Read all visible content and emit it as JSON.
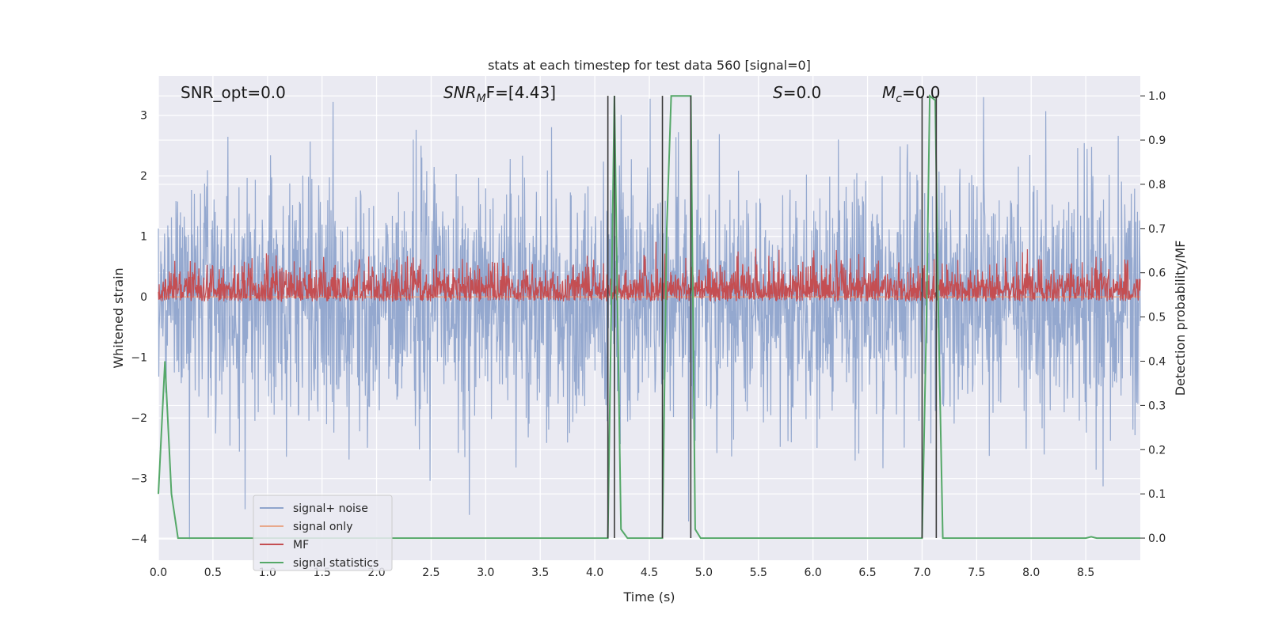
{
  "chart_data": {
    "type": "line",
    "title": "stats at each timestep for test data 560 [signal=0]",
    "xlabel": "Time (s)",
    "ylabel_left": "Whitened strain",
    "ylabel_right": "Detection probability/MF",
    "xlim": [
      0.0,
      9.0
    ],
    "ylim_left": [
      -4.35,
      3.65
    ],
    "ylim_right": [
      -0.05,
      1.045
    ],
    "x_ticks": [
      0.0,
      0.5,
      1.0,
      1.5,
      2.0,
      2.5,
      3.0,
      3.5,
      4.0,
      4.5,
      5.0,
      5.5,
      6.0,
      6.5,
      7.0,
      7.5,
      8.0,
      8.5
    ],
    "x_tick_labels": [
      "0.0",
      "0.5",
      "1.0",
      "1.5",
      "2.0",
      "2.5",
      "3.0",
      "3.5",
      "4.0",
      "4.5",
      "5.0",
      "5.5",
      "6.0",
      "6.5",
      "7.0",
      "7.5",
      "8.0",
      "8.5"
    ],
    "y_left_ticks": [
      3,
      2,
      1,
      0,
      -1,
      -2,
      -3,
      -4
    ],
    "y_left_tick_labels": [
      "3",
      "2",
      "1",
      "0",
      "−1",
      "−2",
      "−3",
      "−4"
    ],
    "y_right_ticks": [
      1.0,
      0.9,
      0.8,
      0.7,
      0.6,
      0.5,
      0.4,
      0.3,
      0.2,
      0.1,
      0.0
    ],
    "y_right_tick_labels": [
      "1.0",
      "0.9",
      "0.8",
      "0.7",
      "0.6",
      "0.5",
      "0.4",
      "0.3",
      "0.2",
      "0.1",
      "0.0"
    ],
    "grid": true,
    "legend_position": "lower-left",
    "annotations": {
      "snr_opt": "SNR_opt=0.0",
      "snr_mf_prefix": "SNR",
      "snr_mf_sub": "M",
      "snr_mf_suffix": "F=[4.43]",
      "s_italic": "S",
      "s_value": "=0.0",
      "mc_italic": "M",
      "mc_sub": "c",
      "mc_value": "=0.0"
    },
    "series": [
      {
        "name": "signal+ noise",
        "color": "#8fa4cc",
        "axis": "left",
        "kind": "noise",
        "range_approx": [
          -4.0,
          3.3
        ],
        "std_approx": 1.0
      },
      {
        "name": "signal only",
        "color": "#e8a98c",
        "axis": "left",
        "kind": "constant",
        "value": 0.0
      },
      {
        "name": "MF",
        "color": "#c44e52",
        "axis": "right",
        "kind": "noise",
        "base": 0.535,
        "range_approx": [
          0.535,
          0.67
        ]
      },
      {
        "name": "signal statistics",
        "color": "#55a868",
        "axis": "right",
        "kind": "line",
        "x": [
          0.0,
          0.06,
          0.12,
          0.18,
          0.25,
          4.12,
          4.15,
          4.18,
          4.21,
          4.24,
          4.3,
          4.35,
          4.62,
          4.66,
          4.7,
          4.88,
          4.92,
          4.97,
          5.02,
          7.0,
          7.04,
          7.07,
          7.12,
          7.15,
          7.19,
          8.5,
          8.55,
          8.6,
          9.0
        ],
        "y": [
          0.1,
          0.4,
          0.1,
          0.0,
          0.0,
          0.0,
          0.5,
          1.0,
          0.5,
          0.02,
          0.0,
          0.0,
          0.0,
          0.7,
          1.0,
          1.0,
          0.02,
          0.0,
          0.0,
          0.0,
          0.5,
          1.0,
          0.99,
          0.5,
          0.0,
          0.0,
          0.003,
          0.0,
          0.0
        ]
      }
    ],
    "vertical_markers": [
      {
        "x": 4.12,
        "ymin_right": 0.0,
        "ymax_right": 1.0
      },
      {
        "x": 4.18,
        "ymin_right": 0.0,
        "ymax_right": 1.0
      },
      {
        "x": 4.62,
        "ymin_right": 0.0,
        "ymax_right": 1.0
      },
      {
        "x": 4.88,
        "ymin_right": 0.0,
        "ymax_right": 1.0
      },
      {
        "x": 7.0,
        "ymin_right": 0.0,
        "ymax_right": 1.0
      },
      {
        "x": 7.13,
        "ymin_right": 0.0,
        "ymax_right": 1.0
      }
    ],
    "marker_color": "#3a3a3a"
  }
}
